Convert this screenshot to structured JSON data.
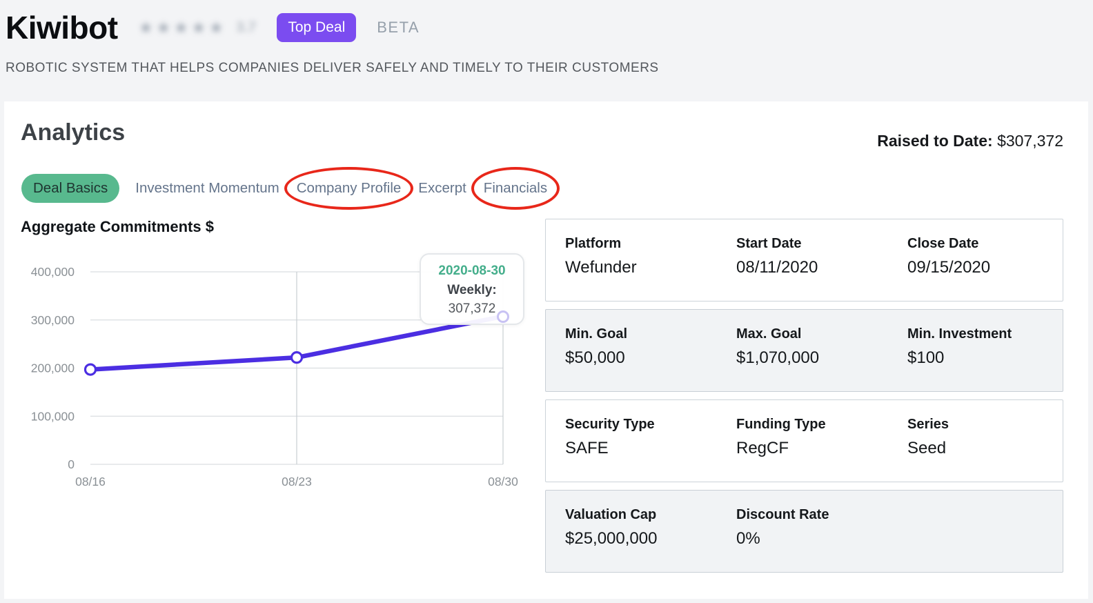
{
  "header": {
    "title": "Kiwibot",
    "rating_stars": "★★★★★",
    "rating_value": "3.7",
    "rating_obscured": true,
    "top_deal_badge": "Top Deal",
    "beta_label": "BETA",
    "subtitle": "ROBOTIC SYSTEM THAT HELPS COMPANIES DELIVER SAFELY AND TIMELY TO THEIR CUSTOMERS"
  },
  "analytics": {
    "heading": "Analytics",
    "raised_label": "Raised to Date:",
    "raised_value": "$307,372"
  },
  "tabs": [
    {
      "label": "Deal Basics",
      "active": true,
      "annotated": false
    },
    {
      "label": "Investment Momentum",
      "active": false,
      "annotated": false
    },
    {
      "label": "Company Profile",
      "active": false,
      "annotated": true
    },
    {
      "label": "Excerpt",
      "active": false,
      "annotated": false
    },
    {
      "label": "Financials",
      "active": false,
      "annotated": true
    }
  ],
  "chart_data": {
    "type": "line",
    "title": "Aggregate Commitments $",
    "x": [
      "08/16",
      "08/23",
      "08/30"
    ],
    "series": [
      {
        "name": "Weekly",
        "values": [
          197000,
          222000,
          307372
        ]
      }
    ],
    "ylim": [
      0,
      400000
    ],
    "yticks": [
      0,
      100000,
      200000,
      300000,
      400000
    ],
    "ytick_labels": [
      "0",
      "100,000",
      "200,000",
      "300,000",
      "400,000"
    ],
    "grid": true,
    "line_color": "#4b2ee2",
    "tooltip": {
      "date": "2020-08-30",
      "series_label": "Weekly:",
      "value": "307,372"
    }
  },
  "details_cards": [
    {
      "variant": "white",
      "fields": [
        {
          "label": "Platform",
          "value": "Wefunder"
        },
        {
          "label": "Start Date",
          "value": "08/11/2020"
        },
        {
          "label": "Close Date",
          "value": "09/15/2020"
        }
      ]
    },
    {
      "variant": "gray",
      "fields": [
        {
          "label": "Min. Goal",
          "value": "$50,000"
        },
        {
          "label": "Max. Goal",
          "value": "$1,070,000"
        },
        {
          "label": "Min. Investment",
          "value": "$100"
        }
      ]
    },
    {
      "variant": "white",
      "fields": [
        {
          "label": "Security Type",
          "value": "SAFE"
        },
        {
          "label": "Funding Type",
          "value": "RegCF"
        },
        {
          "label": "Series",
          "value": "Seed"
        }
      ]
    },
    {
      "variant": "gray",
      "fields": [
        {
          "label": "Valuation Cap",
          "value": "$25,000,000"
        },
        {
          "label": "Discount Rate",
          "value": "0%"
        }
      ]
    }
  ],
  "colors": {
    "accent_purple": "#7b4cf0",
    "chart_line_purple": "#4b2ee2",
    "active_tab_green": "#58b98e",
    "tooltip_date_green": "#44ae8b",
    "annotation_red": "#e8271a",
    "page_background": "#f3f4f6"
  }
}
